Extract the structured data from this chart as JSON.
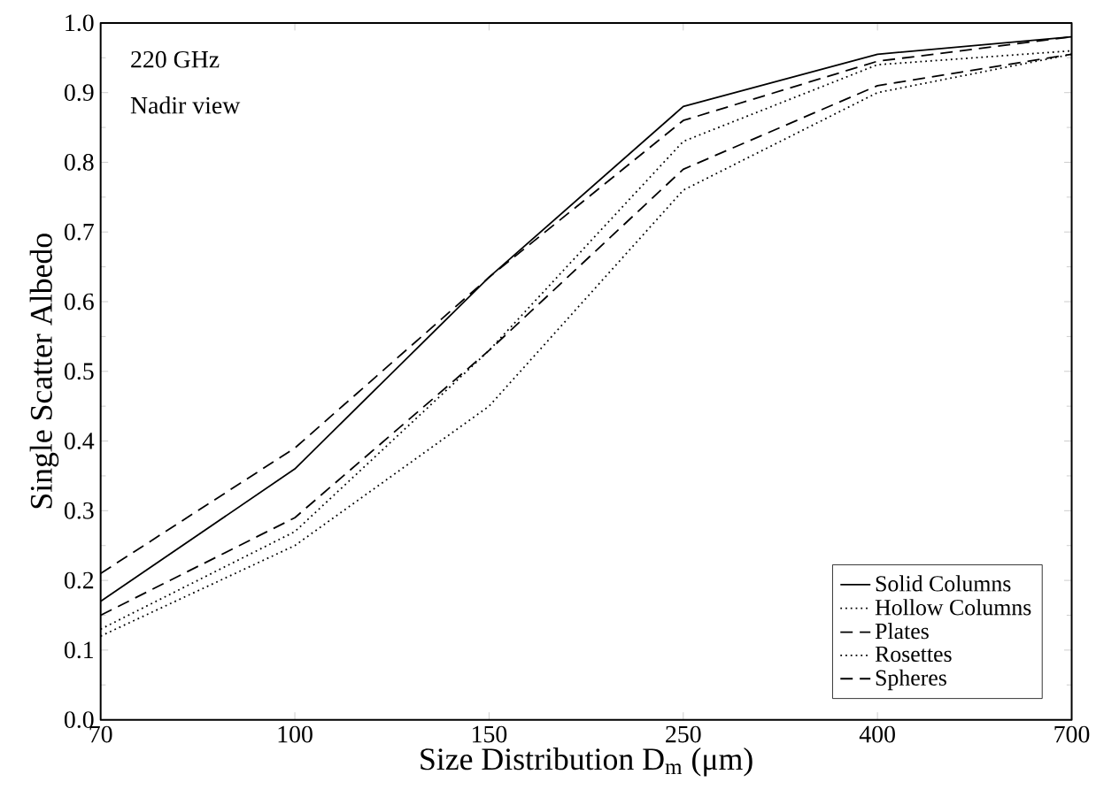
{
  "chart_data": {
    "type": "line",
    "xlabel": "Size Distribution D$_{m}$ (μm)",
    "ylabel": "Single Scatter Albedo",
    "annotations": [
      "220 GHz",
      "Nadir view"
    ],
    "categories": [
      "70",
      "100",
      "150",
      "250",
      "400",
      "700"
    ],
    "ylim": [
      0,
      1
    ],
    "yticks": [
      {
        "value": 0,
        "label": "0.0"
      },
      0.1,
      0.2,
      0.3,
      0.4,
      0.5,
      0.6,
      0.7,
      0.8,
      0.9,
      {
        "value": 1,
        "label": "1.0"
      }
    ],
    "grid": false,
    "legend": "bottom right",
    "series": [
      {
        "name": "Solid Columns",
        "color": "#000000",
        "line_style": "solid",
        "values": [
          0.17,
          0.36,
          0.635,
          0.88,
          0.955,
          0.98
        ]
      },
      {
        "name": "Hollow Columns",
        "color": "#000000",
        "line_style": "dotted",
        "values": [
          0.13,
          0.27,
          0.53,
          0.83,
          0.94,
          0.96
        ]
      },
      {
        "name": "Plates",
        "color": "#000000",
        "line_style": "dashed",
        "values": [
          0.15,
          0.29,
          0.53,
          0.79,
          0.91,
          0.955
        ]
      },
      {
        "name": "Rosettes",
        "color": "#000000",
        "line_style": "dotted",
        "values": [
          0.12,
          0.25,
          0.45,
          0.76,
          0.9,
          0.955
        ]
      },
      {
        "name": "Spheres",
        "color": "#000000",
        "line_style": "dashed",
        "values": [
          0.21,
          0.39,
          0.635,
          0.86,
          0.945,
          0.98
        ]
      }
    ]
  }
}
